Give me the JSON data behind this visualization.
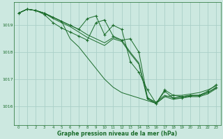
{
  "background_color": "#cce8e0",
  "plot_bg_color": "#cce8e0",
  "grid_color": "#aacfc8",
  "line_color": "#1a6b2a",
  "marker_color": "#1a6b2a",
  "xlabel": "Graphe pression niveau de la mer (hPa)",
  "ylim": [
    1015.3,
    1019.85
  ],
  "xlim": [
    -0.5,
    23.5
  ],
  "yticks": [
    1016,
    1017,
    1018,
    1019
  ],
  "xticks": [
    0,
    1,
    2,
    3,
    4,
    5,
    6,
    7,
    8,
    9,
    10,
    11,
    12,
    13,
    14,
    15,
    16,
    17,
    18,
    19,
    20,
    21,
    22,
    23
  ],
  "series": [
    {
      "x": [
        0,
        1,
        2,
        3,
        4,
        5,
        6,
        7,
        8,
        9,
        10,
        11,
        12,
        13,
        14,
        15,
        16,
        17,
        18,
        19,
        20,
        21,
        22,
        23
      ],
      "y": [
        1019.45,
        1019.6,
        1019.55,
        1019.45,
        1019.3,
        1019.15,
        1019.0,
        1018.85,
        1018.65,
        1018.5,
        1018.35,
        1018.55,
        1018.45,
        1018.0,
        1017.6,
        1016.3,
        1016.15,
        1016.4,
        1016.3,
        1016.35,
        1016.4,
        1016.4,
        1016.5,
        1016.7
      ],
      "has_markers": false
    },
    {
      "x": [
        0,
        1,
        2,
        3,
        4,
        5,
        6,
        7,
        8,
        9,
        10,
        11,
        12,
        13,
        14,
        15,
        16,
        17,
        18,
        19,
        20,
        21,
        22,
        23
      ],
      "y": [
        1019.45,
        1019.6,
        1019.55,
        1019.45,
        1019.25,
        1019.1,
        1018.95,
        1018.75,
        1018.55,
        1018.4,
        1018.25,
        1018.5,
        1018.4,
        1017.95,
        1017.55,
        1016.25,
        1016.1,
        1016.35,
        1016.25,
        1016.3,
        1016.35,
        1016.35,
        1016.45,
        1016.65
      ],
      "has_markers": false
    },
    {
      "x": [
        0,
        1,
        2,
        3,
        4,
        5,
        6,
        7,
        8,
        9,
        10,
        11,
        12,
        13,
        14,
        15,
        16,
        17,
        18,
        19,
        20,
        21,
        22,
        23
      ],
      "y": [
        1019.45,
        1019.6,
        1019.55,
        1019.4,
        1019.1,
        1018.9,
        1018.75,
        1018.6,
        1018.45,
        1019.1,
        1019.2,
        1018.6,
        1018.45,
        1018.5,
        1018.0,
        1016.3,
        1016.1,
        1016.55,
        1016.3,
        1016.3,
        1016.38,
        1016.38,
        1016.5,
        1016.68
      ],
      "has_markers": true
    },
    {
      "x": [
        0,
        1,
        2,
        3,
        4,
        5,
        6,
        7,
        8,
        9,
        10,
        11,
        12,
        13,
        14,
        15,
        16,
        17,
        18,
        19,
        20,
        21,
        22,
        23
      ],
      "y": [
        1019.45,
        1019.6,
        1019.55,
        1019.45,
        1019.3,
        1019.15,
        1019.0,
        1018.85,
        1019.25,
        1019.35,
        1018.65,
        1019.0,
        1018.85,
        1017.65,
        1017.25,
        1016.6,
        1016.1,
        1016.6,
        1016.4,
        1016.35,
        1016.4,
        1016.4,
        1016.55,
        1016.8
      ],
      "has_markers": true
    },
    {
      "x": [
        0,
        1,
        2,
        3,
        4,
        5,
        6,
        7,
        8,
        9,
        10,
        11,
        12,
        13,
        14,
        15,
        16,
        17,
        18,
        19,
        20,
        21,
        22,
        23
      ],
      "y": [
        1019.45,
        1019.6,
        1019.55,
        1019.45,
        1019.3,
        1019.15,
        1018.5,
        1018.2,
        1017.8,
        1017.4,
        1017.0,
        1016.7,
        1016.5,
        1016.4,
        1016.3,
        1016.2,
        1016.1,
        1016.35,
        1016.4,
        1016.4,
        1016.45,
        1016.5,
        1016.6,
        1016.75
      ],
      "has_markers": false
    }
  ],
  "figsize": [
    3.2,
    2.0
  ],
  "dpi": 100
}
